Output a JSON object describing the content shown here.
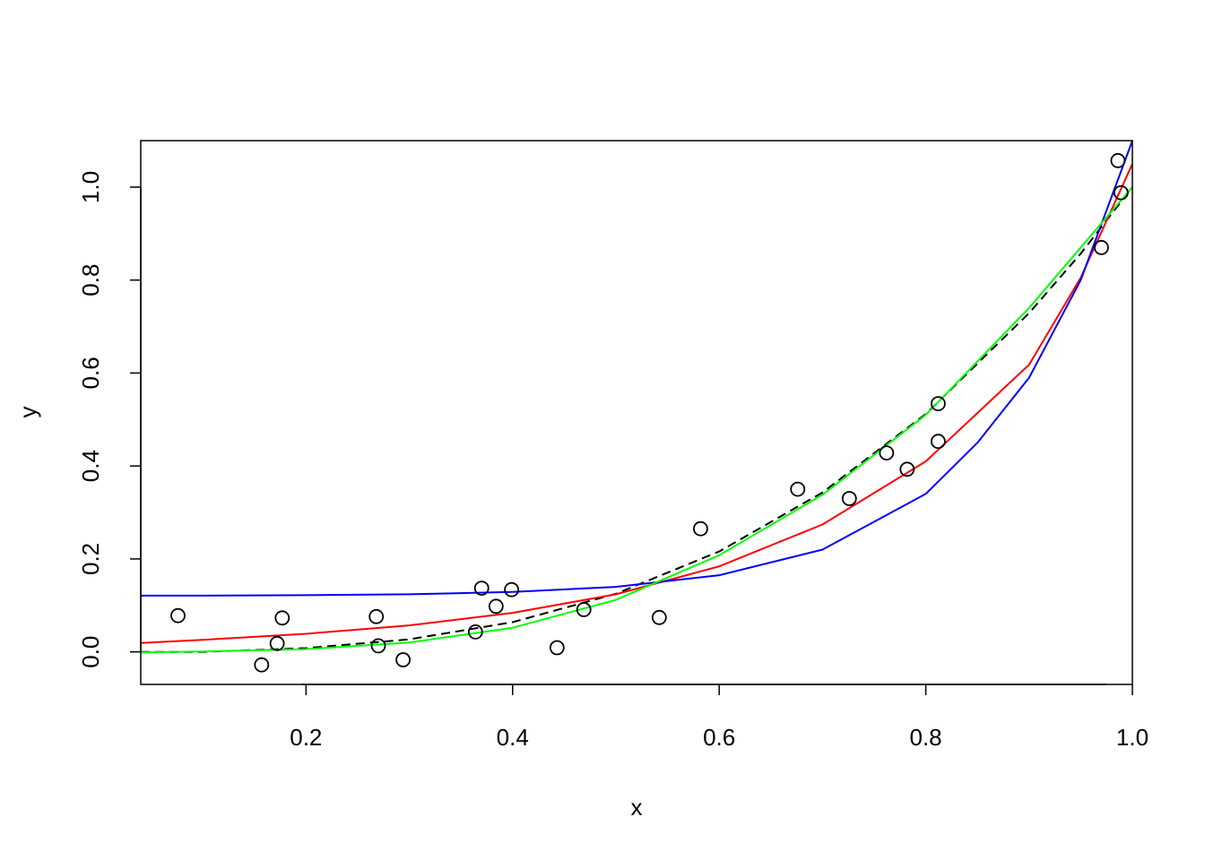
{
  "chart_data": {
    "type": "scatter",
    "title": "",
    "xlabel": "x",
    "ylabel": "y",
    "xlim": [
      0.04,
      1.0
    ],
    "ylim": [
      -0.07,
      1.1
    ],
    "grid": false,
    "x_ticks": [
      {
        "value": 0.2,
        "label": "0.2"
      },
      {
        "value": 0.4,
        "label": "0.4"
      },
      {
        "value": 0.6,
        "label": "0.6"
      },
      {
        "value": 0.8,
        "label": "0.8"
      },
      {
        "value": 1.0,
        "label": "1.0"
      }
    ],
    "y_ticks": [
      {
        "value": 0.0,
        "label": "0.0"
      },
      {
        "value": 0.2,
        "label": "0.2"
      },
      {
        "value": 0.4,
        "label": "0.4"
      },
      {
        "value": 0.6,
        "label": "0.6"
      },
      {
        "value": 0.8,
        "label": "0.8"
      },
      {
        "value": 1.0,
        "label": "1.0"
      }
    ],
    "points": {
      "marker": "open-circle",
      "color": "#000000",
      "x": [
        0.076,
        0.157,
        0.172,
        0.177,
        0.268,
        0.27,
        0.294,
        0.364,
        0.37,
        0.384,
        0.399,
        0.443,
        0.469,
        0.542,
        0.582,
        0.676,
        0.726,
        0.762,
        0.782,
        0.812,
        0.812,
        0.97,
        0.986,
        0.989
      ],
      "y": [
        0.078,
        -0.028,
        0.018,
        0.073,
        0.076,
        0.013,
        -0.017,
        0.043,
        0.137,
        0.098,
        0.134,
        0.009,
        0.091,
        0.074,
        0.265,
        0.35,
        0.33,
        0.428,
        0.393,
        0.453,
        0.534,
        0.87,
        1.057,
        0.988
      ]
    },
    "series": [
      {
        "color": "#000000",
        "dash": true,
        "x": [
          0.04,
          0.1,
          0.2,
          0.3,
          0.4,
          0.5,
          0.6,
          0.7,
          0.8,
          0.9,
          0.95,
          1.0
        ],
        "y": [
          0.0,
          0.0,
          0.008,
          0.027,
          0.064,
          0.125,
          0.216,
          0.343,
          0.512,
          0.729,
          0.857,
          1.0
        ]
      },
      {
        "color": "#ff0000",
        "dash": false,
        "x": [
          0.04,
          0.1,
          0.2,
          0.3,
          0.4,
          0.5,
          0.6,
          0.7,
          0.8,
          0.9,
          0.95,
          1.0
        ],
        "y": [
          0.019,
          0.026,
          0.039,
          0.057,
          0.084,
          0.124,
          0.184,
          0.274,
          0.41,
          0.618,
          0.805,
          1.05
        ]
      },
      {
        "color": "#0000ff",
        "dash": false,
        "x": [
          0.04,
          0.1,
          0.2,
          0.3,
          0.4,
          0.5,
          0.6,
          0.7,
          0.8,
          0.85,
          0.9,
          0.95,
          1.0
        ],
        "y": [
          0.121,
          0.121,
          0.122,
          0.124,
          0.129,
          0.14,
          0.165,
          0.22,
          0.34,
          0.45,
          0.59,
          0.8,
          1.11
        ]
      },
      {
        "color": "#00ff00",
        "dash": false,
        "x": [
          0.04,
          0.1,
          0.2,
          0.3,
          0.4,
          0.5,
          0.6,
          0.7,
          0.8,
          0.9,
          0.95,
          1.0
        ],
        "y": [
          -0.001,
          0.001,
          0.006,
          0.02,
          0.052,
          0.112,
          0.208,
          0.338,
          0.51,
          0.74,
          0.87,
          1.0
        ]
      }
    ]
  }
}
